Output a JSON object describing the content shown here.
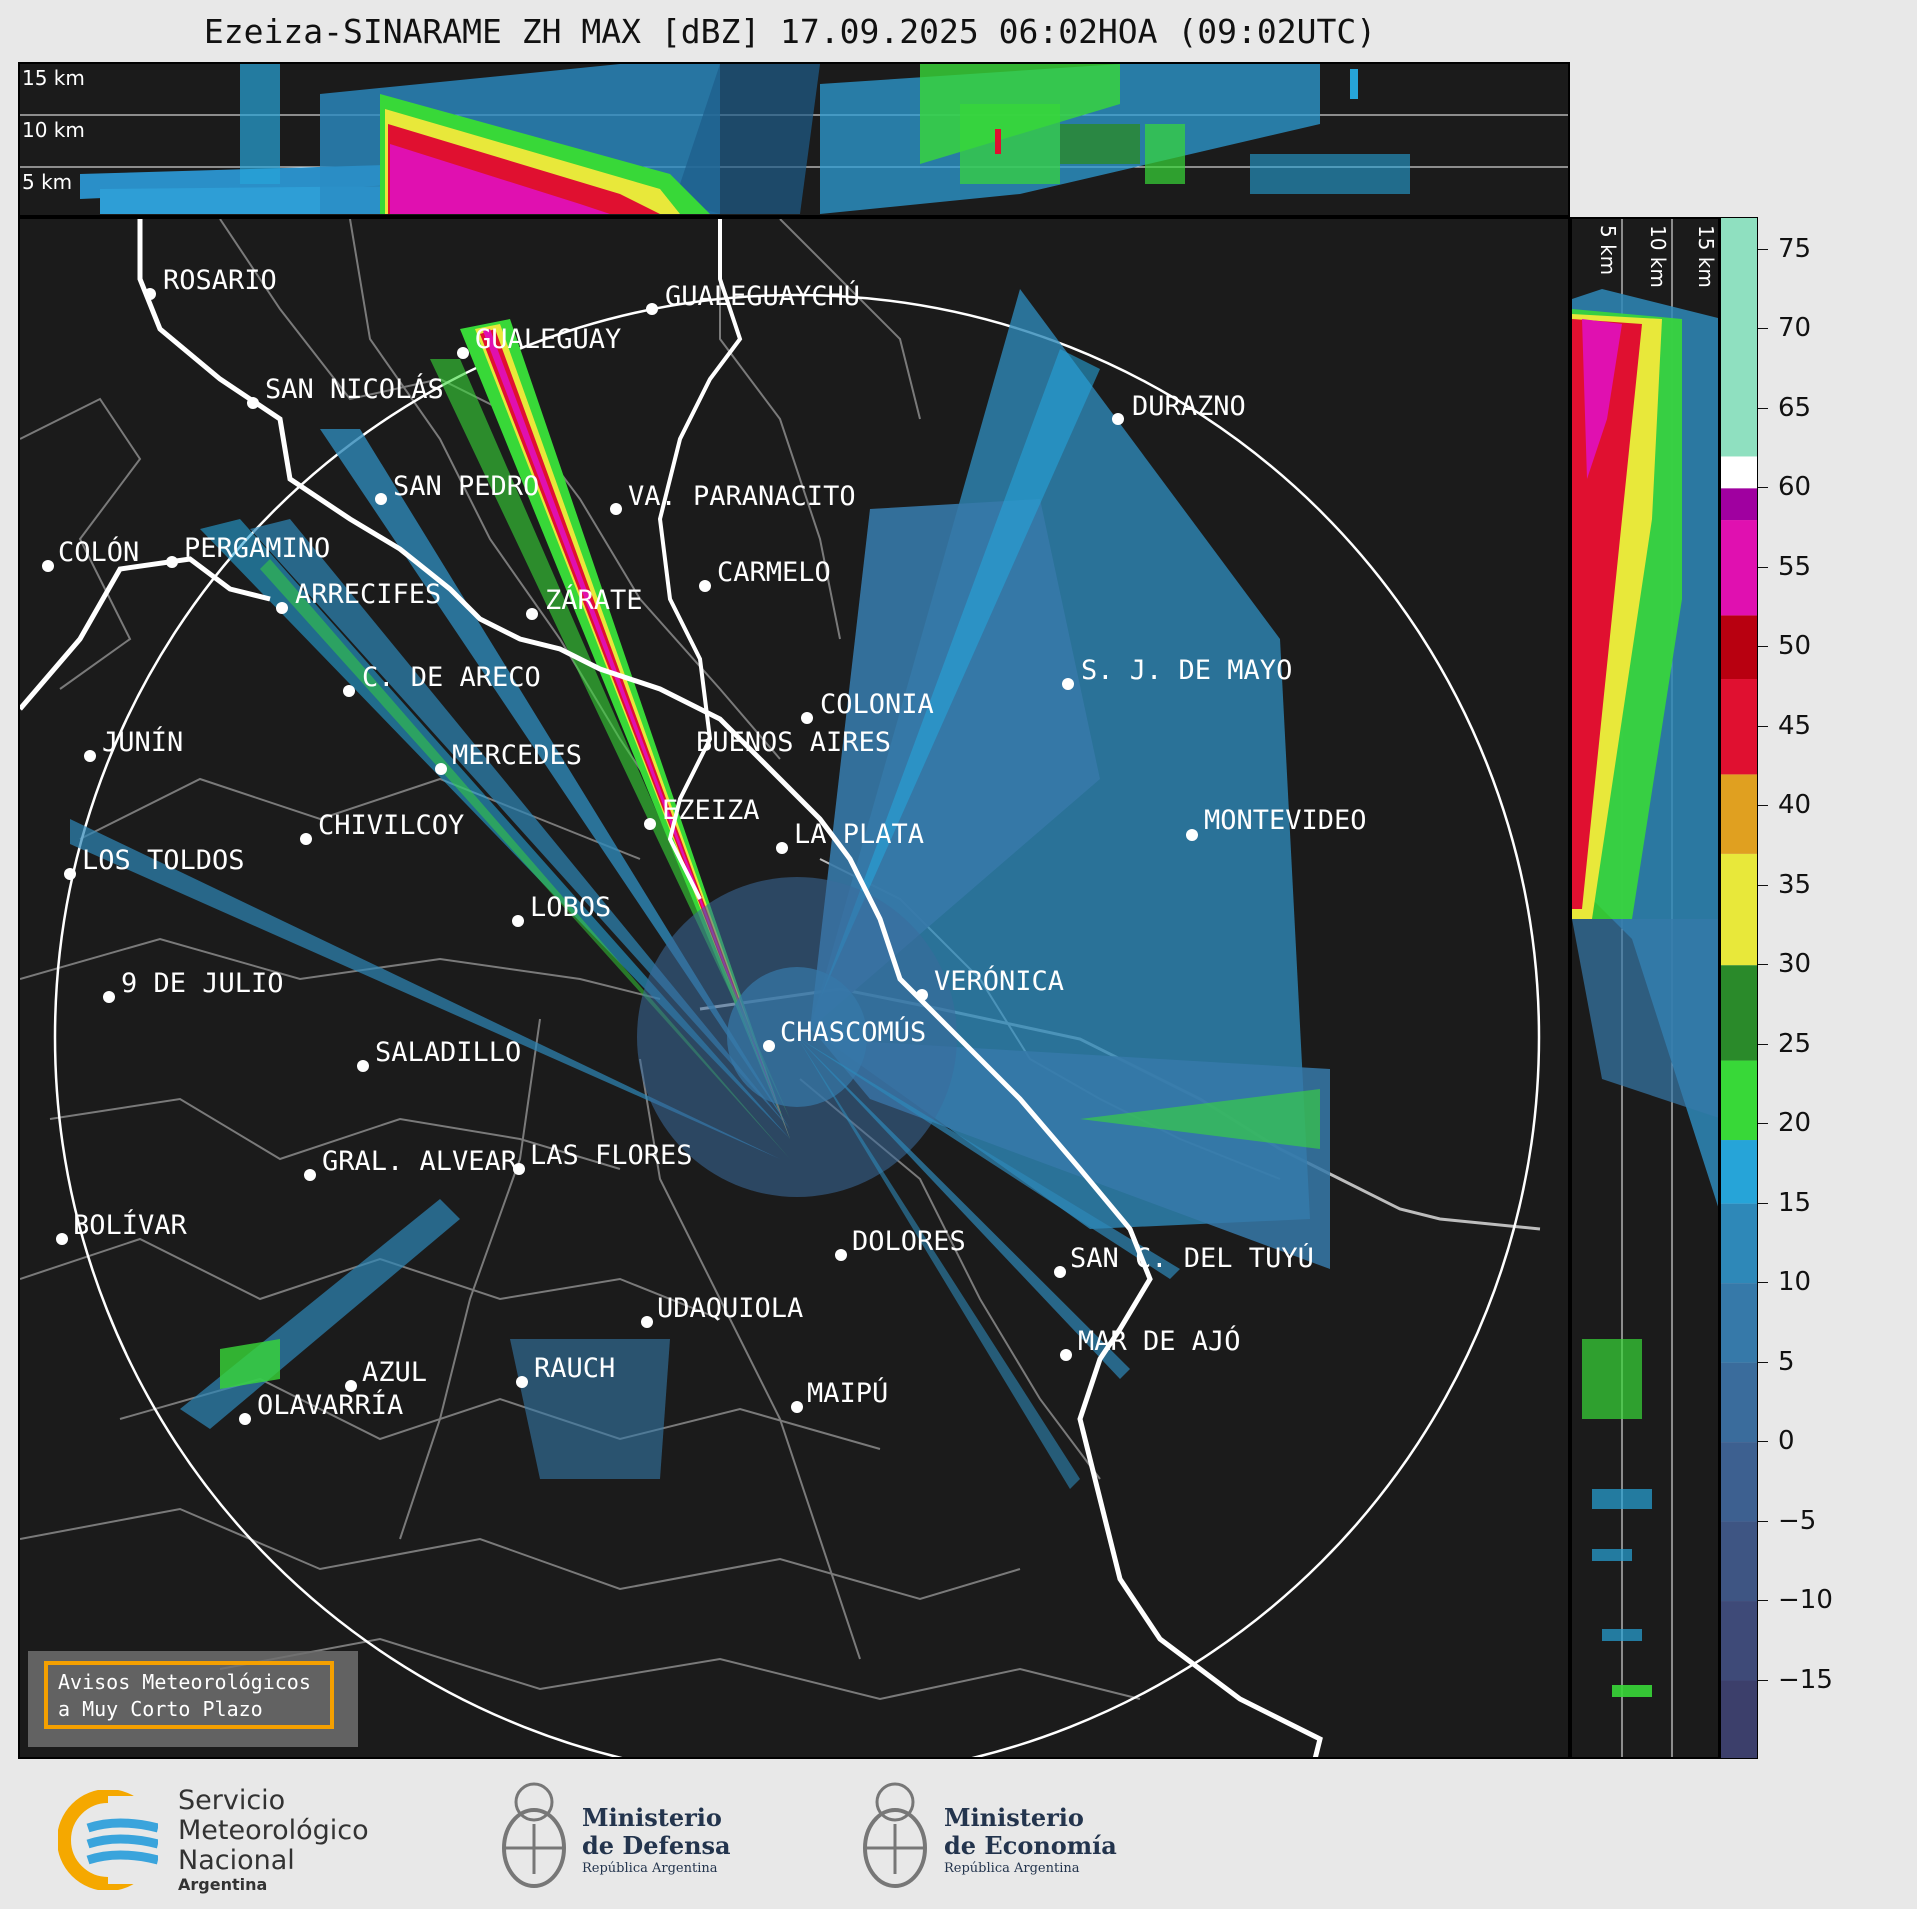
{
  "title": "Ezeiza-SINARAME ZH MAX [dBZ] 17.09.2025 06:02HOA (09:02UTC)",
  "top_panel": {
    "altitude_labels": [
      "15 km",
      "10 km",
      "5 km"
    ]
  },
  "side_panel": {
    "altitude_labels": [
      "5 km",
      "10 km",
      "15 km"
    ]
  },
  "map": {
    "range_ring": "white circle centered on radar",
    "cities": [
      {
        "name": "ROSARIO"
      },
      {
        "name": "GUALEGUAYCHÚ"
      },
      {
        "name": "GUALEGUAY"
      },
      {
        "name": "SAN NICOLÁS"
      },
      {
        "name": "DURAZNO"
      },
      {
        "name": "SAN PEDRO"
      },
      {
        "name": "VA. PARANACITO"
      },
      {
        "name": "COLÓN"
      },
      {
        "name": "PERGAMINO"
      },
      {
        "name": "CARMELO"
      },
      {
        "name": "ARRECIFES"
      },
      {
        "name": "ZÁRATE"
      },
      {
        "name": "C. DE ARECO"
      },
      {
        "name": "S. J. DE MAYO"
      },
      {
        "name": "COLONIA"
      },
      {
        "name": "JUNÍN"
      },
      {
        "name": "BUENOS AIRES"
      },
      {
        "name": "MERCEDES"
      },
      {
        "name": "EZEIZA"
      },
      {
        "name": "MONTEVIDEO"
      },
      {
        "name": "CHIVILCOY"
      },
      {
        "name": "LA PLATA"
      },
      {
        "name": "LOS TOLDOS"
      },
      {
        "name": "LOBOS"
      },
      {
        "name": "VERÓNICA"
      },
      {
        "name": "9 DE JULIO"
      },
      {
        "name": "CHASCOMÚS"
      },
      {
        "name": "SALADILLO"
      },
      {
        "name": "GRAL. ALVEAR"
      },
      {
        "name": "LAS FLORES"
      },
      {
        "name": "BOLÍVAR"
      },
      {
        "name": "DOLORES"
      },
      {
        "name": "SAN C. DEL TUYÚ"
      },
      {
        "name": "UDAQUIOLA"
      },
      {
        "name": "MAR DE AJÓ"
      },
      {
        "name": "AZUL"
      },
      {
        "name": "RAUCH"
      },
      {
        "name": "MAIPÚ"
      },
      {
        "name": "OLAVARRÍA"
      }
    ],
    "warning_box": {
      "line1": "Avisos Meteorológicos",
      "line2": "a Muy Corto Plazo"
    }
  },
  "colorbar": {
    "unit": "dBZ",
    "ticks": [
      "75",
      "70",
      "65",
      "60",
      "55",
      "50",
      "45",
      "40",
      "35",
      "30",
      "25",
      "20",
      "15",
      "10",
      "5",
      "0",
      "−5",
      "−10",
      "−15"
    ],
    "range": [
      -20,
      77
    ],
    "stops": [
      {
        "from": -20,
        "to": -15,
        "color": "#3c3f6b"
      },
      {
        "from": -15,
        "to": -10,
        "color": "#3e4a78"
      },
      {
        "from": -10,
        "to": -5,
        "color": "#3e5583"
      },
      {
        "from": -5,
        "to": 0,
        "color": "#3d6090"
      },
      {
        "from": 0,
        "to": 5,
        "color": "#3a6c9c"
      },
      {
        "from": 5,
        "to": 10,
        "color": "#3679a9"
      },
      {
        "from": 10,
        "to": 15,
        "color": "#2e88b8"
      },
      {
        "from": 15,
        "to": 19,
        "color": "#26a4d8"
      },
      {
        "from": 19,
        "to": 24,
        "color": "#38d838"
      },
      {
        "from": 24,
        "to": 30,
        "color": "#2a8a2a"
      },
      {
        "from": 30,
        "to": 37,
        "color": "#e8e83a"
      },
      {
        "from": 37,
        "to": 42,
        "color": "#e0a020"
      },
      {
        "from": 42,
        "to": 48,
        "color": "#e01030"
      },
      {
        "from": 48,
        "to": 52,
        "color": "#b80010"
      },
      {
        "from": 52,
        "to": 58,
        "color": "#e010b0"
      },
      {
        "from": 58,
        "to": 60,
        "color": "#a000a0"
      },
      {
        "from": 60,
        "to": 62,
        "color": "#ffffff"
      },
      {
        "from": 62,
        "to": 77,
        "color": "#8fe0c0"
      }
    ]
  },
  "footer": {
    "smn": {
      "line1": "Servicio",
      "line2": "Meteorológico",
      "line3": "Nacional",
      "line4": "Argentina"
    },
    "defensa": {
      "line1": "Ministerio",
      "line2": "de Defensa",
      "line3": "República Argentina"
    },
    "economia": {
      "line1": "Ministerio",
      "line2": "de Economía",
      "line3": "República Argentina"
    }
  },
  "colors": {
    "background": "#e8e8e8",
    "panel": "#1b1b1b",
    "coastline": "#ffffff",
    "borders": "#7a7a7a",
    "warning_border": "#f5a000"
  }
}
